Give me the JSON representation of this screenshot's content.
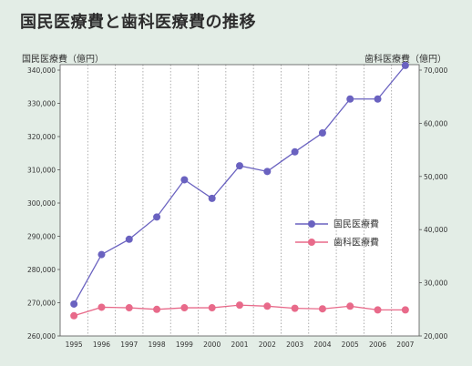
{
  "title": "国民医療費と歯科医療費の推移",
  "left_axis_title": "国民医療費（億円）",
  "right_axis_title": "歯科医療費（億円）",
  "colors": {
    "national": "#6a62c0",
    "dental": "#e86a8a",
    "plot_bg": "#ffffff",
    "grid": "#9a9a9a"
  },
  "chart_data": {
    "type": "line",
    "title": "国民医療費と歯科医療費の推移",
    "x": [
      "1995",
      "1996",
      "1997",
      "1998",
      "1999",
      "2000",
      "2001",
      "2002",
      "2003",
      "2004",
      "2005",
      "2006",
      "2007"
    ],
    "left_ylim": [
      260000,
      340000
    ],
    "right_ylim": [
      20000,
      70000
    ],
    "left_ticks": [
      "260,000",
      "270,000",
      "280,000",
      "290,000",
      "300,000",
      "310,000",
      "320,000",
      "330,000",
      "340,000"
    ],
    "right_ticks": [
      "20,000",
      "30,000",
      "40,000",
      "50,000",
      "60,000",
      "70,000"
    ],
    "grid": "vertical dotted",
    "legend_position": "center-right",
    "series": [
      {
        "name": "国民医療費",
        "axis": "left",
        "values": [
          269600,
          284500,
          289100,
          295800,
          307000,
          301400,
          311200,
          309500,
          315400,
          321100,
          331300,
          331300,
          341400
        ]
      },
      {
        "name": "歯科医療費",
        "axis": "right",
        "values": [
          23800,
          25400,
          25300,
          25000,
          25300,
          25300,
          25800,
          25600,
          25200,
          25100,
          25600,
          24900,
          24900
        ]
      }
    ]
  }
}
